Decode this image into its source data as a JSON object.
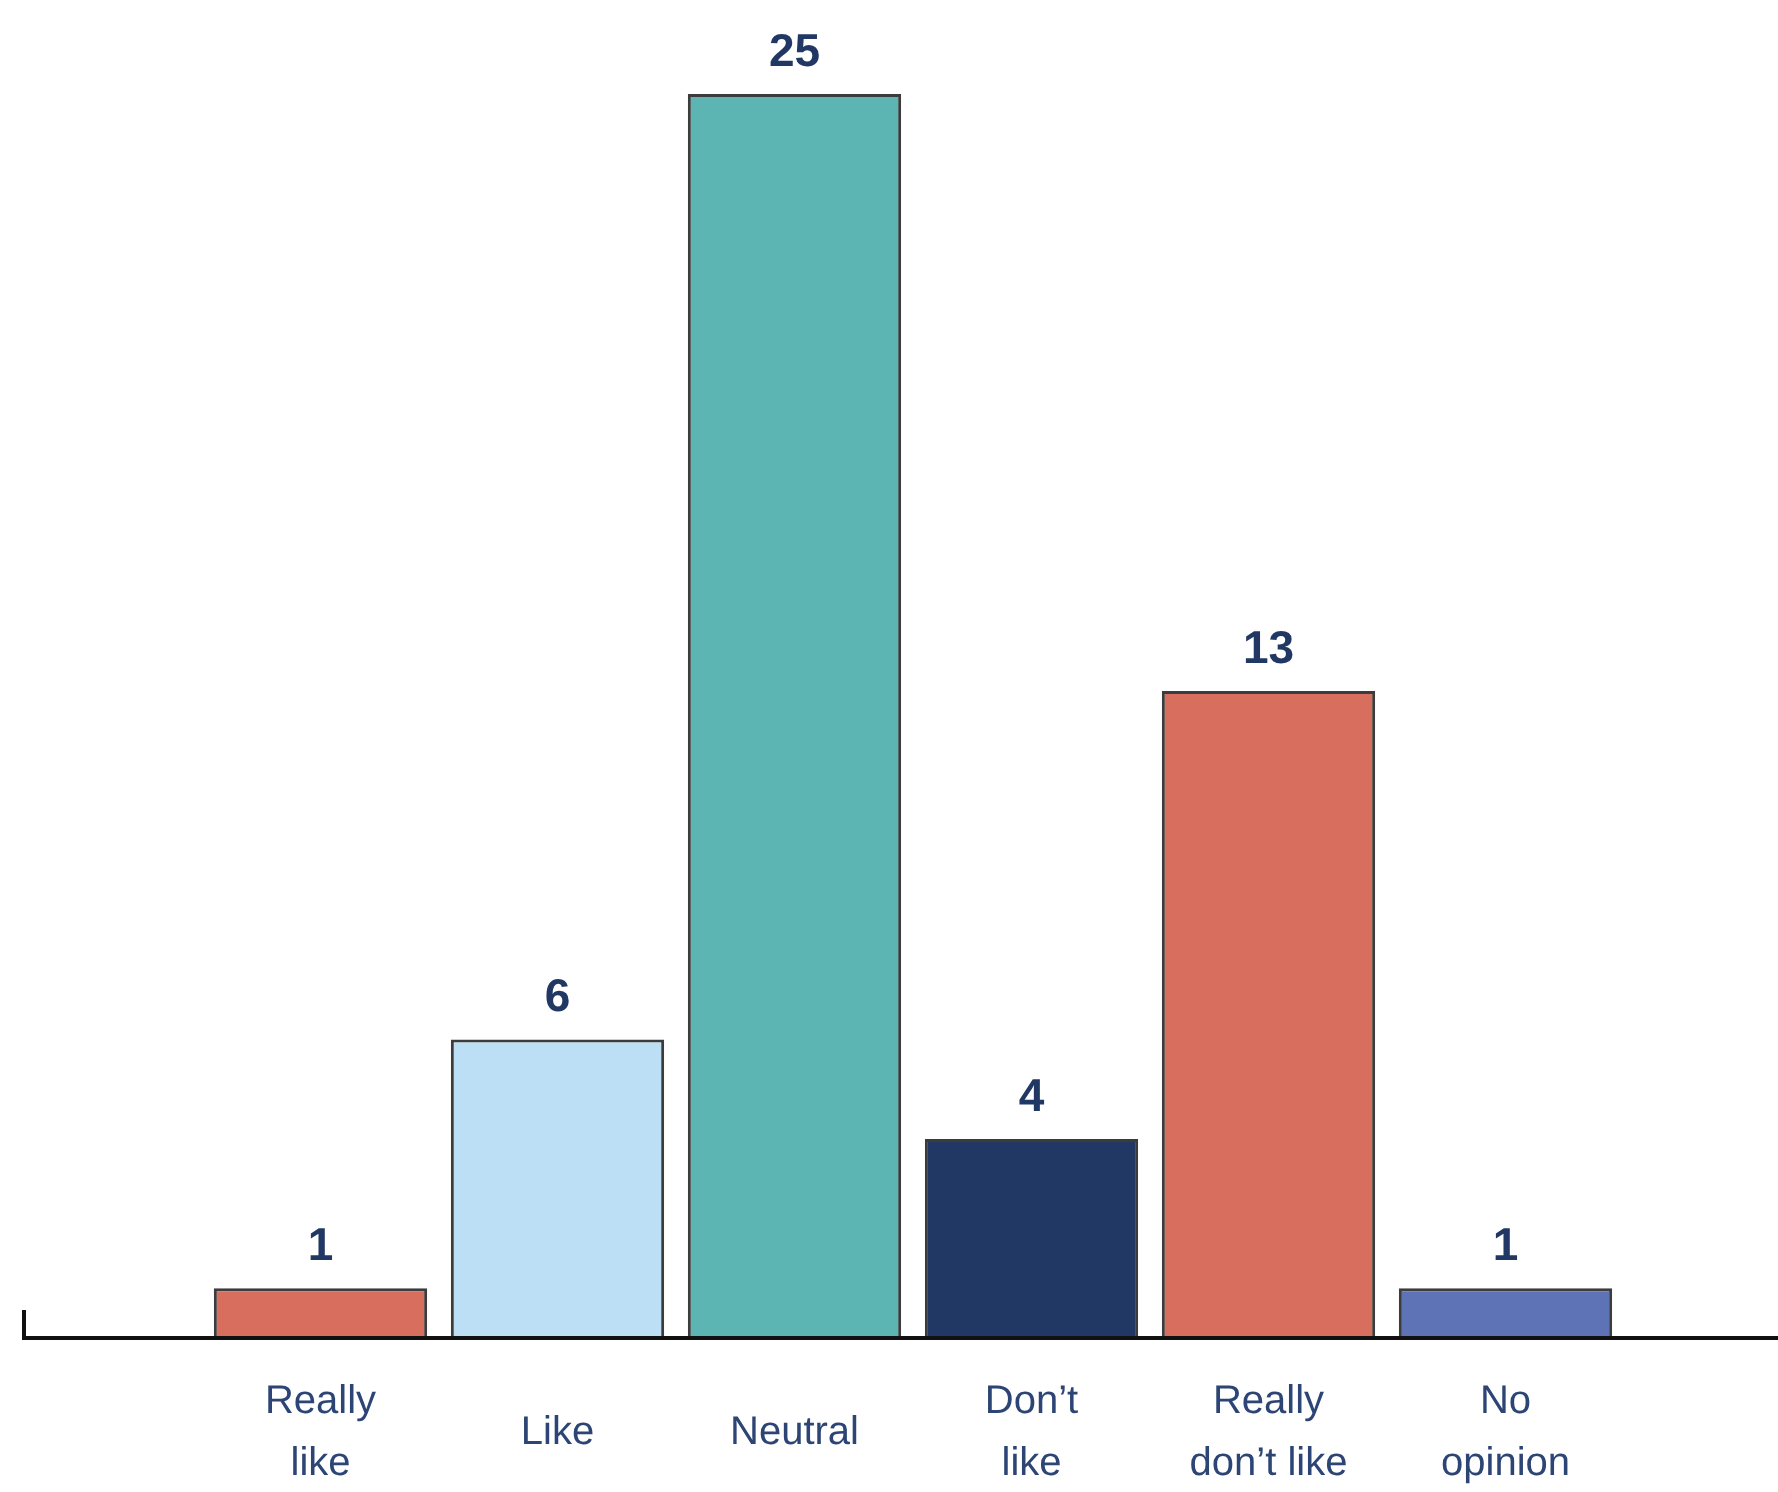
{
  "chart_data": {
    "type": "bar",
    "categories": [
      "Really like",
      "Like",
      "Neutral",
      "Don’t like",
      "Really don’t like",
      "No opinion"
    ],
    "values": [
      1,
      6,
      25,
      4,
      13,
      1
    ],
    "colors": [
      "#d76e5e",
      "#bddff5",
      "#5cb5b2",
      "#213864",
      "#d76e5e",
      "#5d73b5"
    ],
    "data_labels": true
  }
}
